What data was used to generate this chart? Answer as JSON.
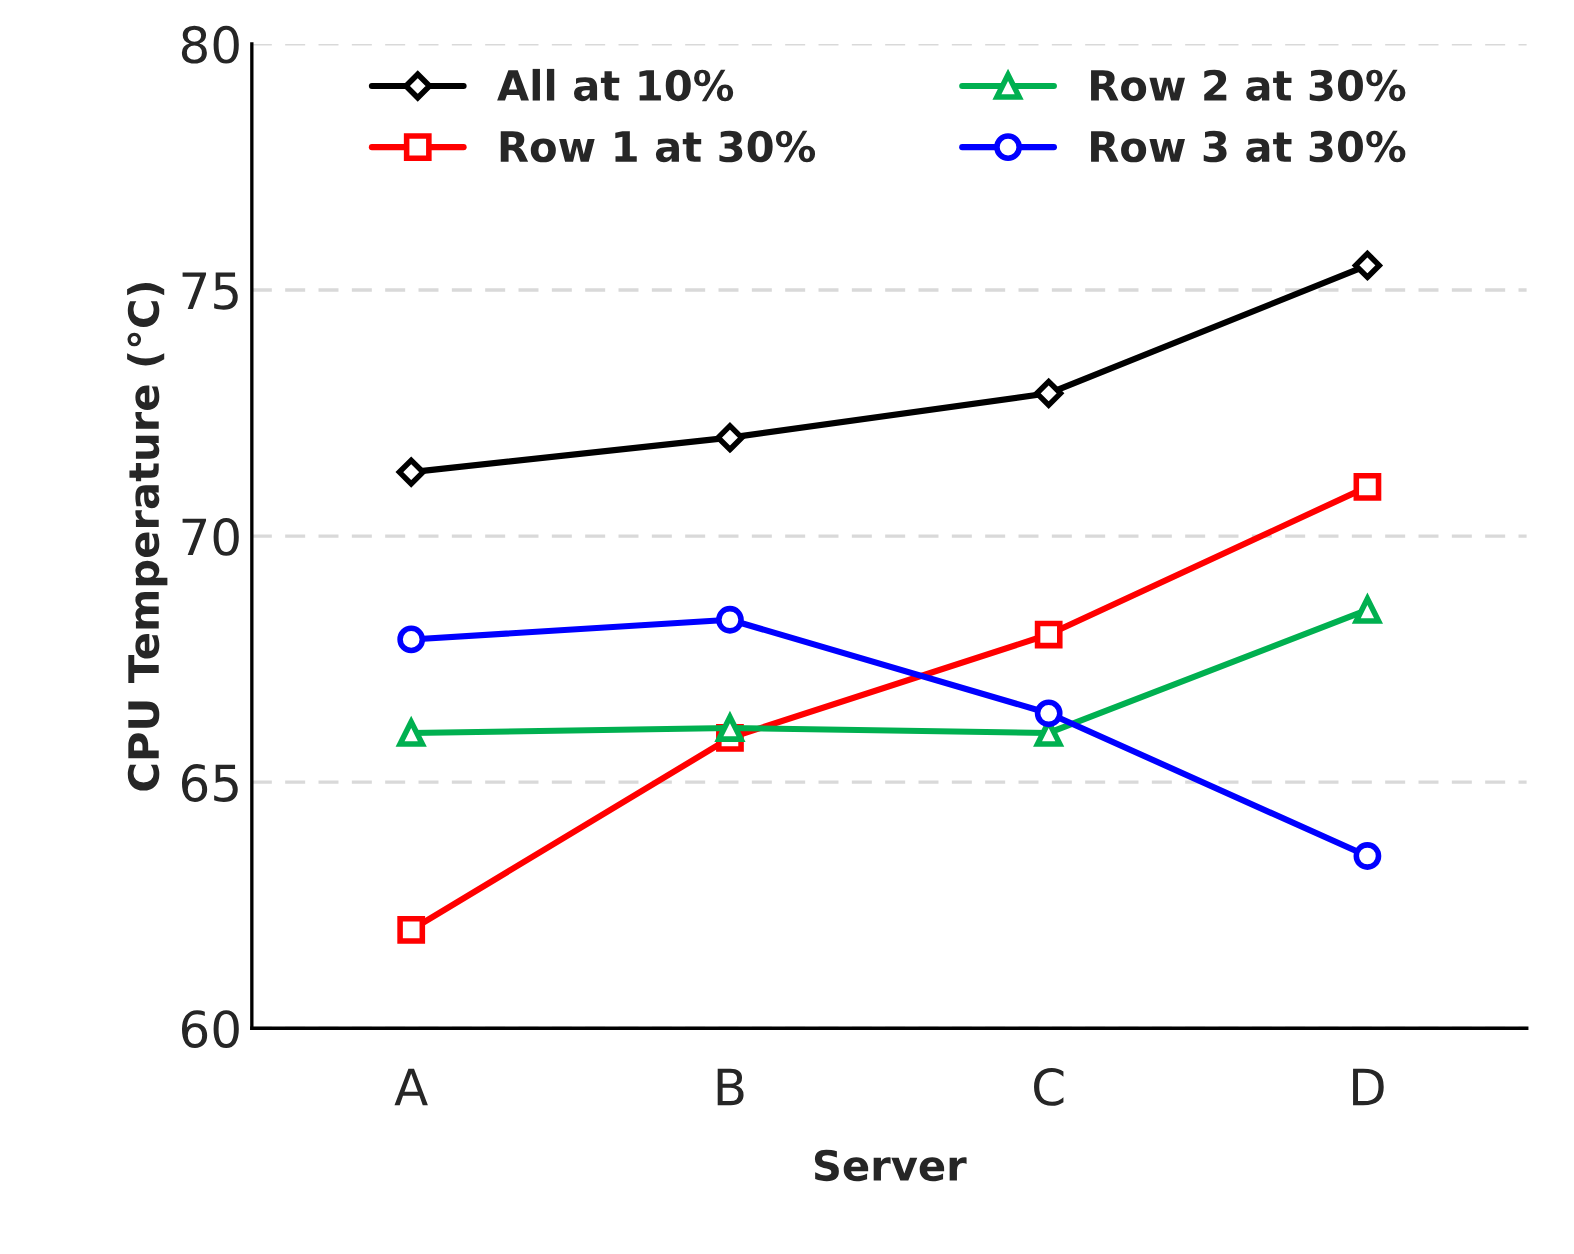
{
  "chart_data": {
    "type": "line",
    "xlabel": "Server",
    "ylabel": "CPU Temperature (°C)",
    "categories": [
      "A",
      "B",
      "C",
      "D"
    ],
    "series": [
      {
        "name": "All at 10%",
        "color": "#000000",
        "marker": "diamond",
        "values": [
          71.3,
          72.0,
          72.9,
          75.5
        ]
      },
      {
        "name": "Row 1 at 30%",
        "color": "#ff0000",
        "marker": "square",
        "values": [
          62.0,
          65.9,
          68.0,
          71.0
        ]
      },
      {
        "name": "Row 2 at 30%",
        "color": "#00b050",
        "marker": "triangle",
        "values": [
          66.0,
          66.1,
          66.0,
          68.5
        ]
      },
      {
        "name": "Row 3 at 30%",
        "color": "#0000ff",
        "marker": "circle",
        "values": [
          67.9,
          68.3,
          66.4,
          63.5
        ]
      }
    ],
    "ylim": [
      60,
      80
    ],
    "yticks": [
      60,
      65,
      70,
      75,
      80
    ],
    "grid": "y",
    "legend": "top",
    "line_style": "solid"
  }
}
